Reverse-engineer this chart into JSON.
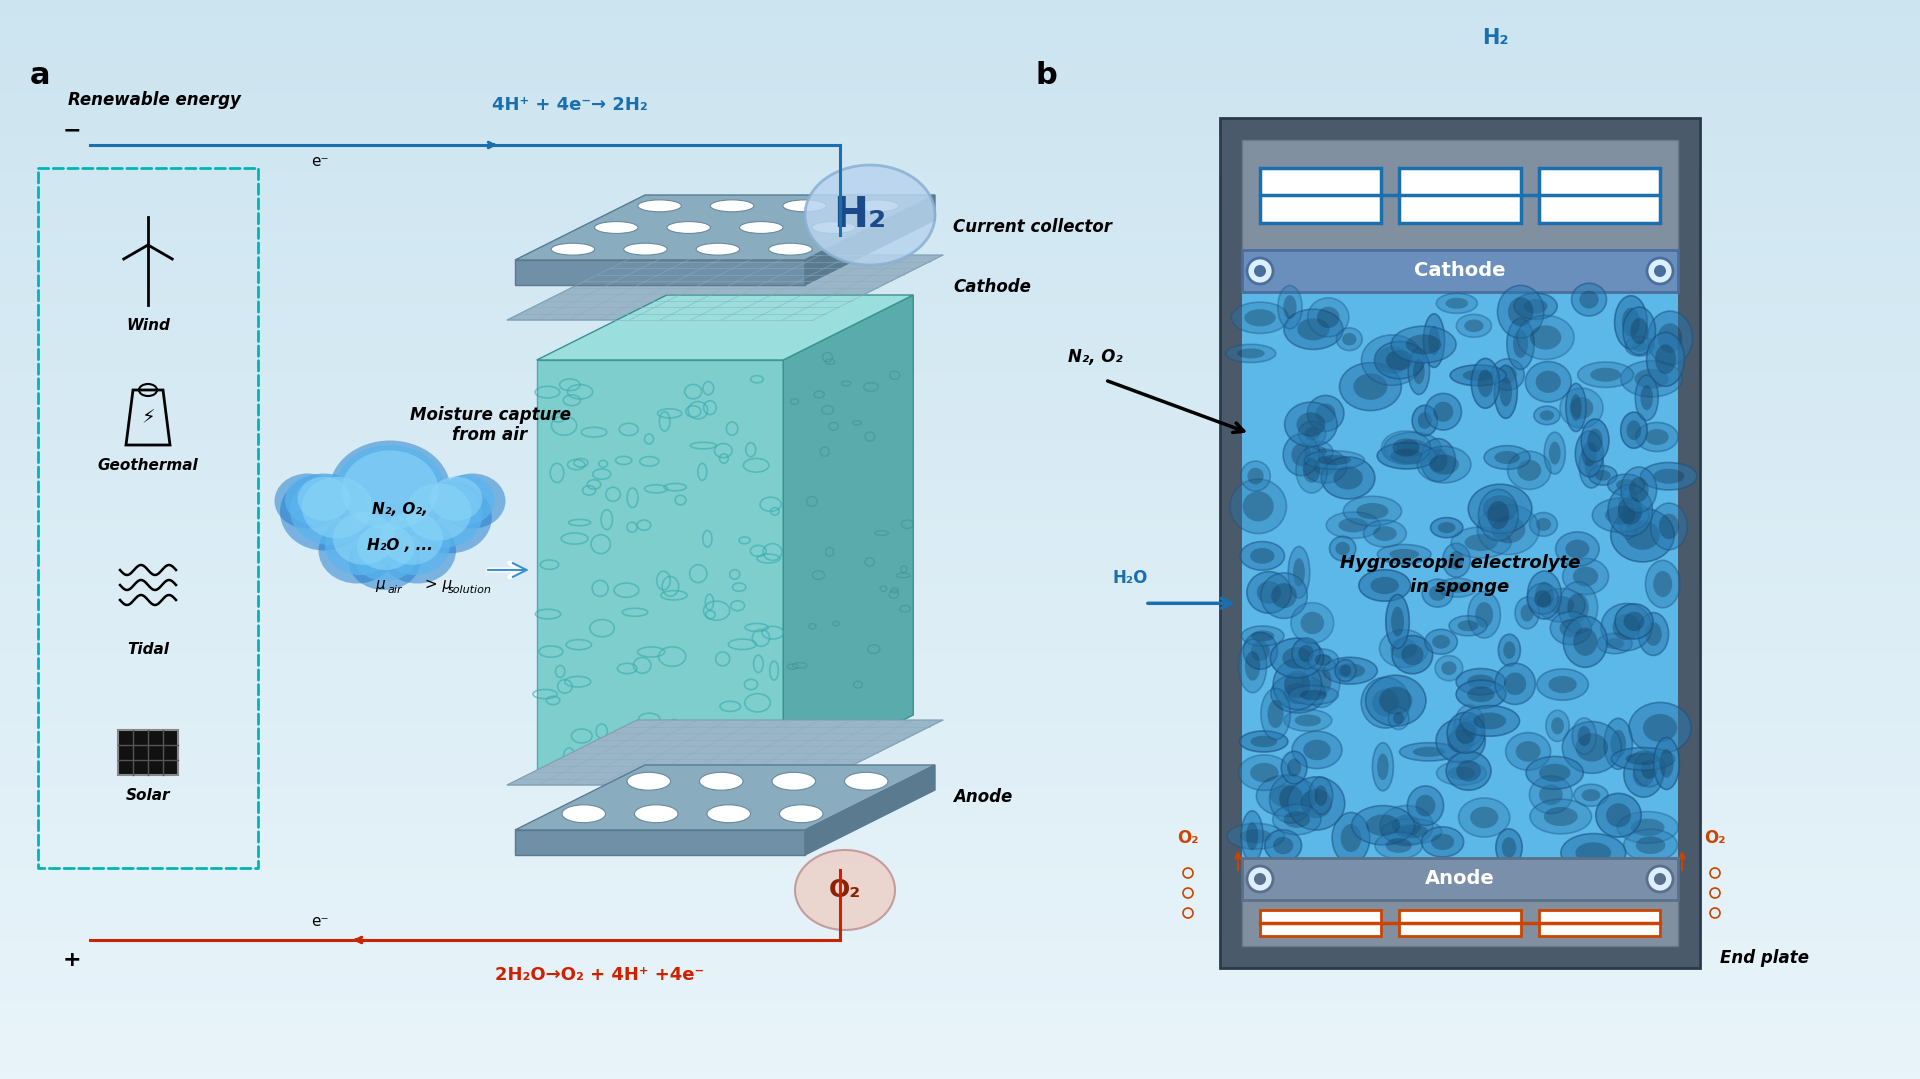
{
  "bg_gradient_top": "#cde4f0",
  "bg_gradient_bottom": "#e8f4fa",
  "label_a": "a",
  "label_b": "b",
  "renewable_energy": "Renewable energy",
  "minus": "−",
  "plus": "+",
  "e_top": "e⁻",
  "e_bottom": "e⁻",
  "reaction_top": "4H⁺ + 4e⁻→ 2H₂",
  "reaction_bottom": "2H₂O→O₂ + 4H⁺ +4e⁻",
  "current_collector": "Current collector",
  "cathode_a": "Cathode",
  "anode_a": "Anode",
  "moisture_line1": "Moisture capture",
  "moisture_line2": "from air",
  "n2o2": "N₂, O₂,",
  "h2o_dots": "H₂O , ...",
  "mu_air": "μ",
  "mu_air_sub": "air",
  "mu_gt": " > μ",
  "mu_sol_sub": "solution",
  "wind": "Wind",
  "geothermal": "Geothermal",
  "tidal": "Tidal",
  "solar": "Solar",
  "H2_a": "H₂",
  "O2_a": "O₂",
  "cathode_b": "Cathode",
  "anode_b": "Anode",
  "end_plate": "End plate",
  "H2_b": "H₂",
  "N2O2_b": "N₂, O₂",
  "H2O_b": "H₂O",
  "O2_left": "O₂",
  "O2_right": "O₂",
  "hygroscopic": "Hygroscopic electrolyte\nin sponge",
  "blue": "#1a6faf",
  "teal": "#00b5b5",
  "red": "#cc2200",
  "blue_arrow": "#2980b9",
  "plate_color": "#8aacbf",
  "plate_dark": "#6a8ca8",
  "plate_side": "#5a7a90",
  "sponge_main": "#7ecece",
  "sponge_side": "#5aacac",
  "sponge_top": "#8eded8",
  "cathode_b_color": "#6a8fbd",
  "anode_b_color": "#7a8a9a",
  "electrolyte_blue": "#5bb8e8",
  "cloud_dark": "#1a7acc",
  "cloud_mid": "#4aa8e8",
  "cloud_light": "#7ec8f0"
}
